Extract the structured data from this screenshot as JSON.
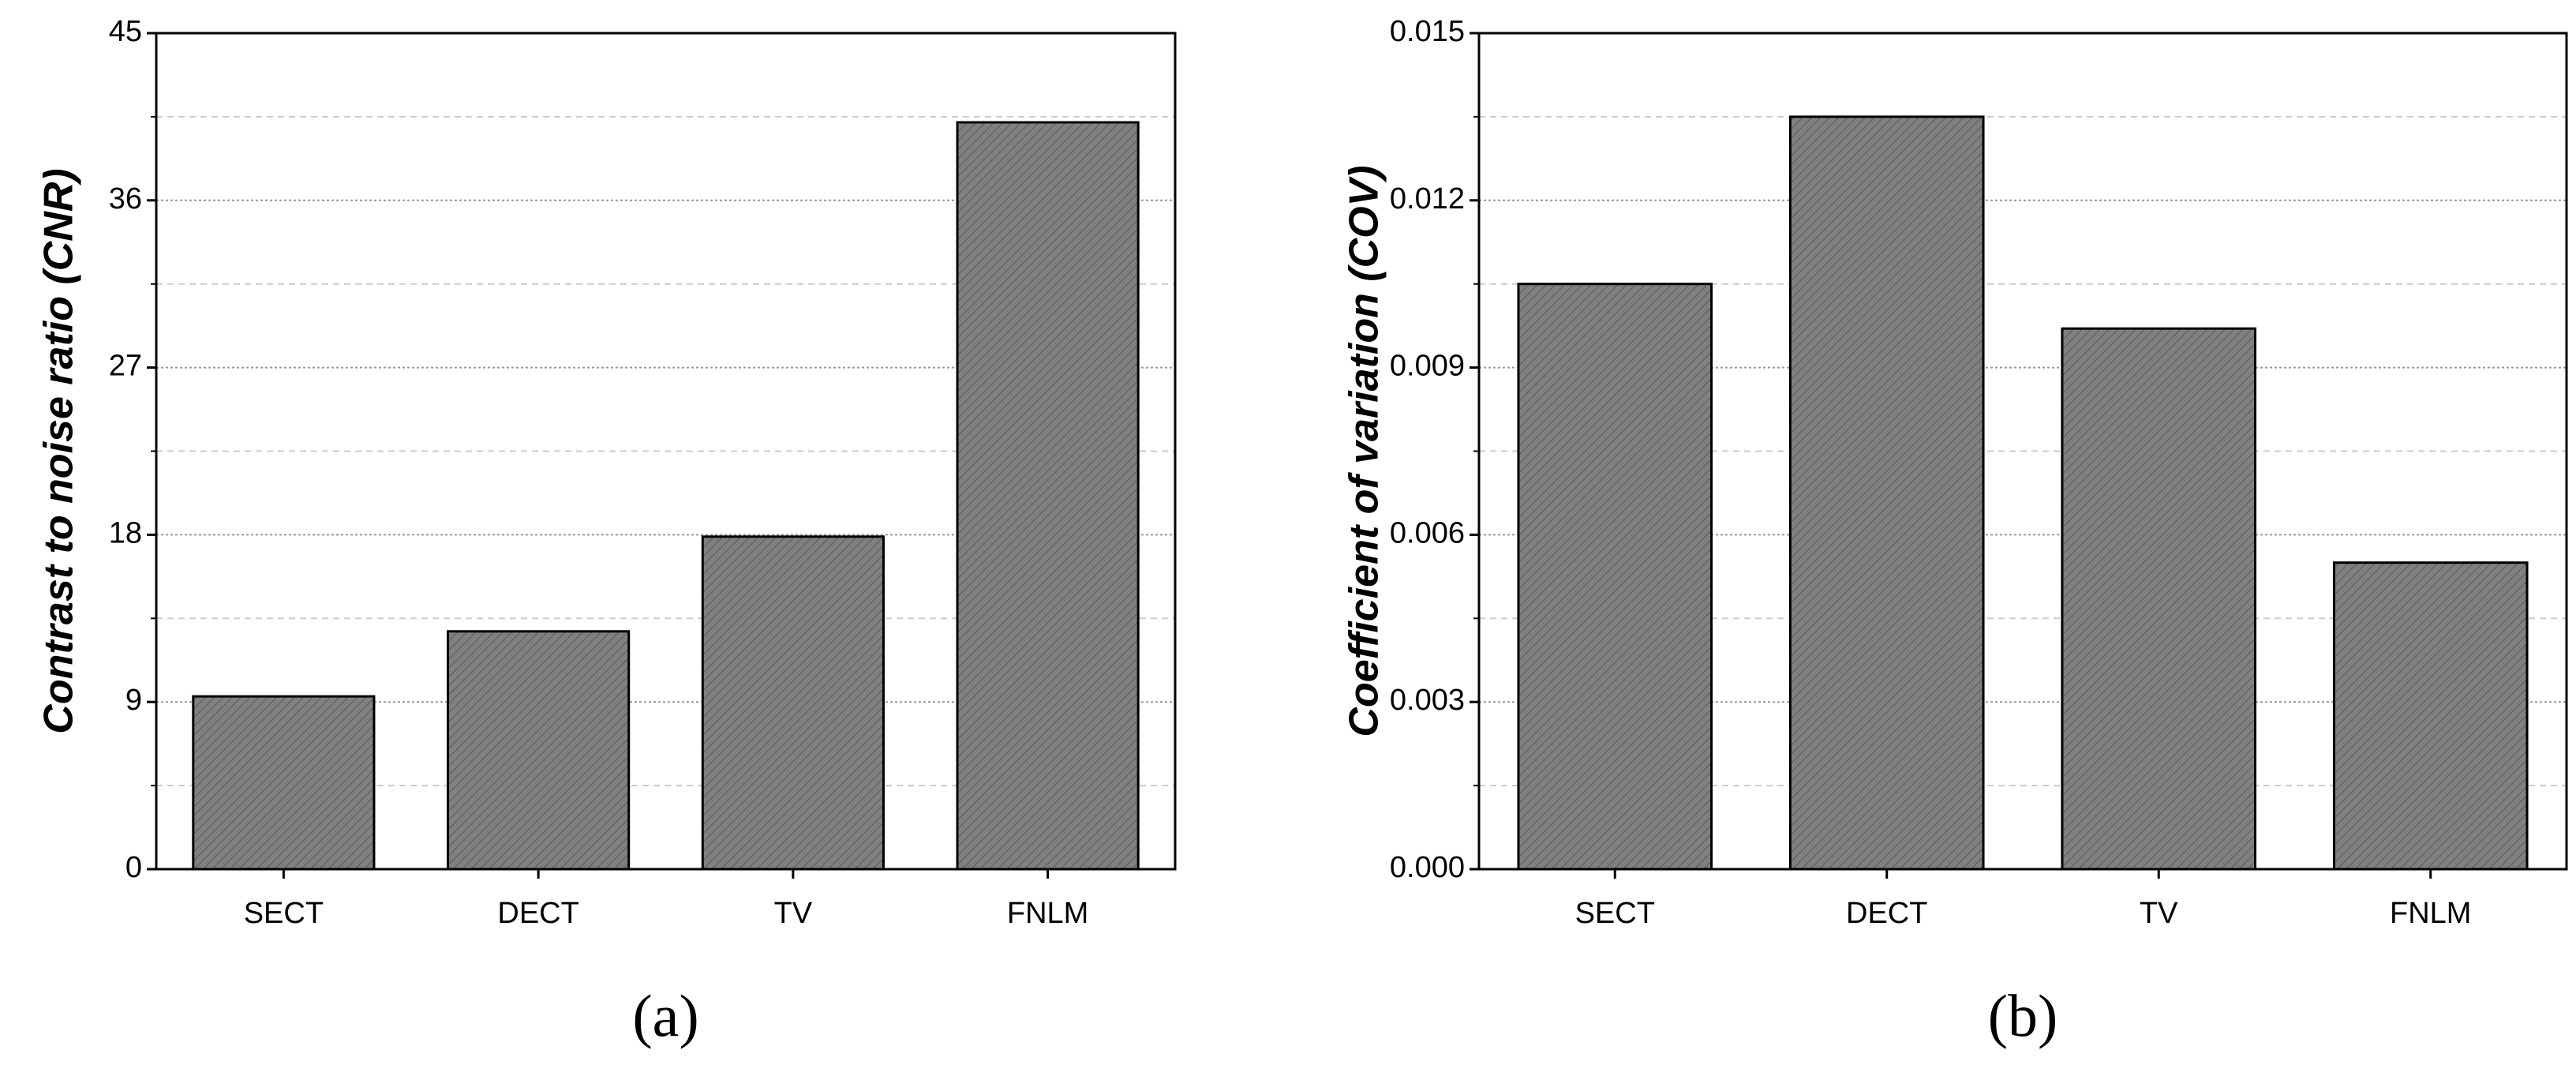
{
  "chart_data": [
    {
      "type": "bar",
      "caption": "(a)",
      "y_label": "Contrast to noise ratio (CNR)",
      "categories": [
        "SECT",
        "DECT",
        "TV",
        "FNLM"
      ],
      "values": [
        9.3,
        12.8,
        17.9,
        40.2
      ],
      "color": "#808080",
      "ylim": [
        0,
        45
      ],
      "yticks": [
        0,
        9,
        18,
        27,
        36,
        45
      ],
      "grid": true,
      "minor_grid": true
    },
    {
      "type": "bar",
      "caption": "(b)",
      "y_label": "Coefficient of variation (COV)",
      "categories": [
        "SECT",
        "DECT",
        "TV",
        "FNLM"
      ],
      "values": [
        0.0105,
        0.0135,
        0.0097,
        0.0055
      ],
      "color": "#808080",
      "ylim": [
        0,
        0.015
      ],
      "yticks": [
        {
          "value": 0,
          "label": "0.000"
        },
        0.003,
        0.006,
        0.009,
        0.012,
        0.015
      ],
      "grid": true,
      "minor_grid": true
    }
  ]
}
